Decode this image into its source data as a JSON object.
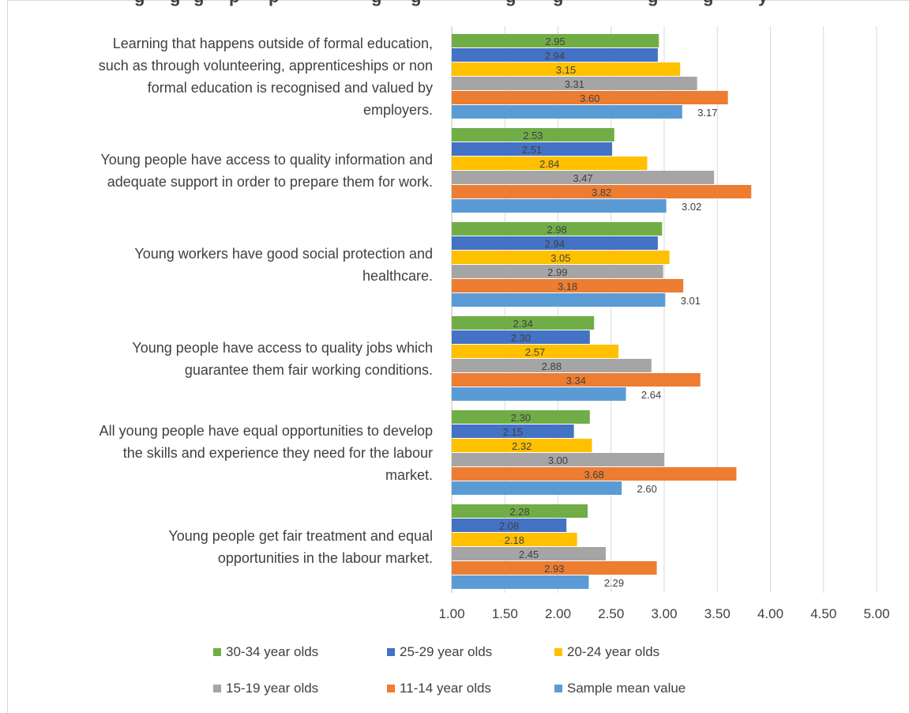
{
  "chart_data": {
    "type": "bar",
    "orientation": "horizontal",
    "title": "",
    "categories": [
      "Learning that happens outside of formal education, such as through volunteering, apprenticeships or non formal education is recognised and valued by employers.",
      "Young people have access to quality information and adequate support in order to prepare them for work.",
      "Young workers have good social protection and healthcare.",
      "Young people have access to quality jobs which guarantee them fair working conditions.",
      "All young people have equal opportunities to develop the skills and experience they need for the labour market.",
      "Young people get fair treatment and equal opportunities in the labour market."
    ],
    "category_lines": [
      [
        "Learning that happens outside of formal education,",
        "such as through volunteering, apprenticeships or non",
        "formal education is recognised and valued by",
        "employers."
      ],
      [
        "Young people have access to quality information and",
        "adequate support in order to prepare them for work."
      ],
      [
        "Young workers have good social protection and",
        "healthcare."
      ],
      [
        "Young people have access to quality jobs which",
        "guarantee them fair working conditions."
      ],
      [
        "All young people have equal opportunities to develop",
        "the skills and experience they need for the labour",
        "market."
      ],
      [
        "Young people get fair treatment and equal",
        "opportunities in the labour market."
      ]
    ],
    "series": [
      {
        "name": "30-34 year olds",
        "color": "#70ad47",
        "values": [
          2.95,
          2.53,
          2.98,
          2.34,
          2.3,
          2.28
        ]
      },
      {
        "name": "25-29 year olds",
        "color": "#4472c4",
        "values": [
          2.94,
          2.51,
          2.94,
          2.3,
          2.15,
          2.08
        ]
      },
      {
        "name": "20-24 year olds",
        "color": "#ffc000",
        "values": [
          3.15,
          2.84,
          3.05,
          2.57,
          2.32,
          2.18
        ]
      },
      {
        "name": "15-19 year olds",
        "color": "#a5a5a5",
        "values": [
          3.31,
          3.47,
          2.99,
          2.88,
          3.0,
          2.45
        ]
      },
      {
        "name": "11-14 year olds",
        "color": "#ed7d31",
        "values": [
          3.6,
          3.82,
          3.18,
          3.34,
          3.68,
          2.93
        ]
      },
      {
        "name": "Sample mean value",
        "color": "#5b9bd5",
        "values": [
          3.17,
          3.02,
          3.01,
          2.64,
          2.6,
          2.29
        ]
      }
    ],
    "value_labels": [
      [
        "2.95",
        "2.53",
        "2.98",
        "2.34",
        "2.30",
        "2.28"
      ],
      [
        "2.94",
        "2.51",
        "2.94",
        "2.30",
        "2.15",
        "2.08"
      ],
      [
        "3.15",
        "2.84",
        "3.05",
        "2.57",
        "2.32",
        "2.18"
      ],
      [
        "3.31",
        "3.47",
        "2.99",
        "2.88",
        "3.00",
        "2.45"
      ],
      [
        "3.60",
        "3.82",
        "3.18",
        "3.34",
        "3.68",
        "2.93"
      ],
      [
        "3.17",
        "3.02",
        "3.01",
        "2.64",
        "2.60",
        "2.29"
      ]
    ],
    "xlim": [
      1.0,
      5.0
    ],
    "xticks": [
      1.0,
      1.5,
      2.0,
      2.5,
      3.0,
      3.5,
      4.0,
      4.5,
      5.0
    ],
    "xtick_labels": [
      "1.00",
      "1.50",
      "2.00",
      "2.50",
      "3.00",
      "3.50",
      "4.00",
      "4.50",
      "5.00"
    ],
    "grid": true,
    "legend_position": "bottom",
    "title_partially_visible": true,
    "title_fragments": [
      "g",
      "g",
      "g",
      "p",
      "p",
      "g",
      "g",
      "g",
      "g",
      "g",
      "g",
      "y"
    ]
  }
}
